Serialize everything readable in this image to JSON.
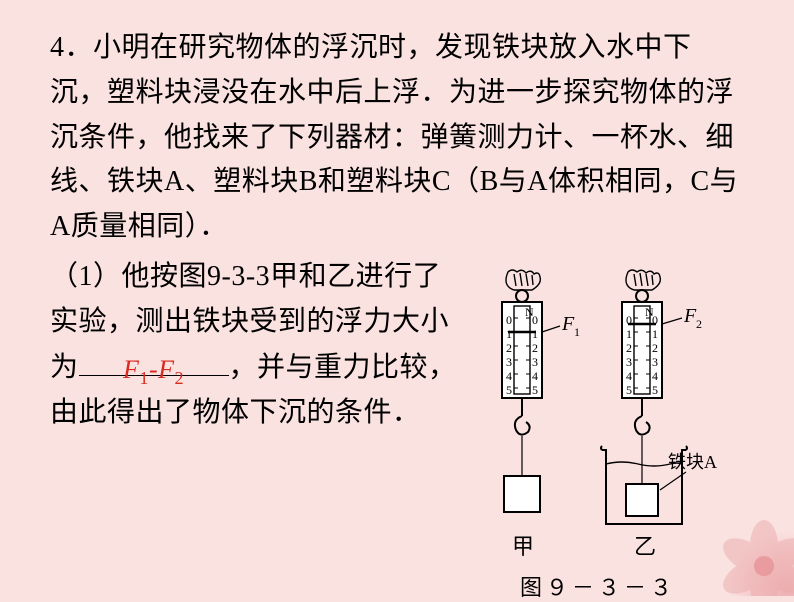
{
  "question_number": "4．",
  "para1": "小明在研究物体的浮沉时，发现铁块放入水中下沉，塑料块浸没在水中后上浮．为进一步探究物体的浮沉条件，他找来了下列器材：弹簧测力计、一杯水、细线、铁块A、塑料块B和塑料块C（B与A体积相同，C与A质量相同）．",
  "para2_a": "（1）他按图9-3-3甲和乙进行了实验，测出铁块受到的浮力大小为",
  "para2_b": "，并与重力比较，由此得出了物体下沉的条件．",
  "answer_html": "F<span class=\"sub\">1</span>-F<span class=\"sub\">2</span>",
  "figure": {
    "caption": "图９－３－３",
    "label_left": "甲",
    "label_right": "乙",
    "iron_label": "铁块A",
    "f1": "F",
    "f1_sub": "1",
    "f2": "F",
    "f2_sub": "2",
    "scale_unit": "N",
    "scale_marks": [
      "0",
      "1",
      "2",
      "3",
      "4",
      "5"
    ],
    "colors": {
      "stroke": "#000000",
      "bg": "#ffffff"
    }
  },
  "flower_colors": {
    "outer": "#f7cfd0",
    "mid": "#edabad",
    "inner": "#e58f93"
  }
}
